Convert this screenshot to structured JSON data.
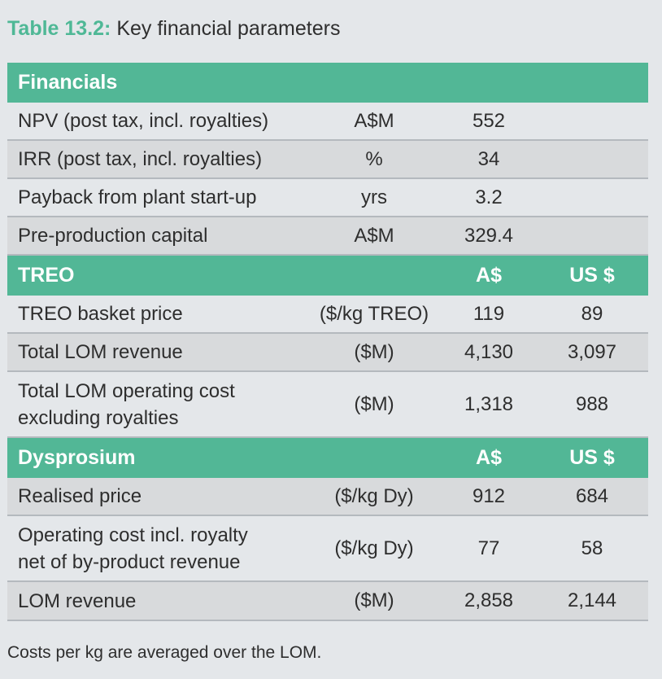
{
  "caption": {
    "number": "Table 13.2:",
    "title": "Key financial parameters"
  },
  "sections": [
    {
      "header": {
        "label": "Financials",
        "col3": "",
        "col4": ""
      },
      "rows": [
        {
          "label": "NPV (post tax, incl. royalties)",
          "unit": "A$M",
          "a": "552",
          "b": ""
        },
        {
          "label": "IRR (post tax, incl. royalties)",
          "unit": "%",
          "a": "34",
          "b": ""
        },
        {
          "label": "Payback from plant start-up",
          "unit": "yrs",
          "a": "3.2",
          "b": ""
        },
        {
          "label": "Pre-production capital",
          "unit": "A$M",
          "a": "329.4",
          "b": ""
        }
      ]
    },
    {
      "header": {
        "label": "TREO",
        "col3": "A$",
        "col4": "US $"
      },
      "rows": [
        {
          "label": "TREO basket price",
          "unit": "($/kg TREO)",
          "a": "119",
          "b": "89"
        },
        {
          "label": "Total LOM revenue",
          "unit": "($M)",
          "a": "4,130",
          "b": "3,097"
        },
        {
          "label": "Total LOM operating cost",
          "label2": "excluding royalties",
          "unit": "($M)",
          "a": "1,318",
          "b": "988"
        }
      ]
    },
    {
      "header": {
        "label": "Dysprosium",
        "col3": "A$",
        "col4": "US $"
      },
      "rows": [
        {
          "label": "Realised price",
          "unit": "($/kg Dy)",
          "a": "912",
          "b": "684"
        },
        {
          "label": "Operating cost incl. royalty",
          "label2": "net of by-product revenue",
          "unit": "($/kg Dy)",
          "a": "77",
          "b": "58"
        },
        {
          "label": "LOM revenue",
          "unit": "($M)",
          "a": "2,858",
          "b": "2,144"
        }
      ]
    }
  ],
  "footnote": "Costs per kg are averaged over the LOM."
}
